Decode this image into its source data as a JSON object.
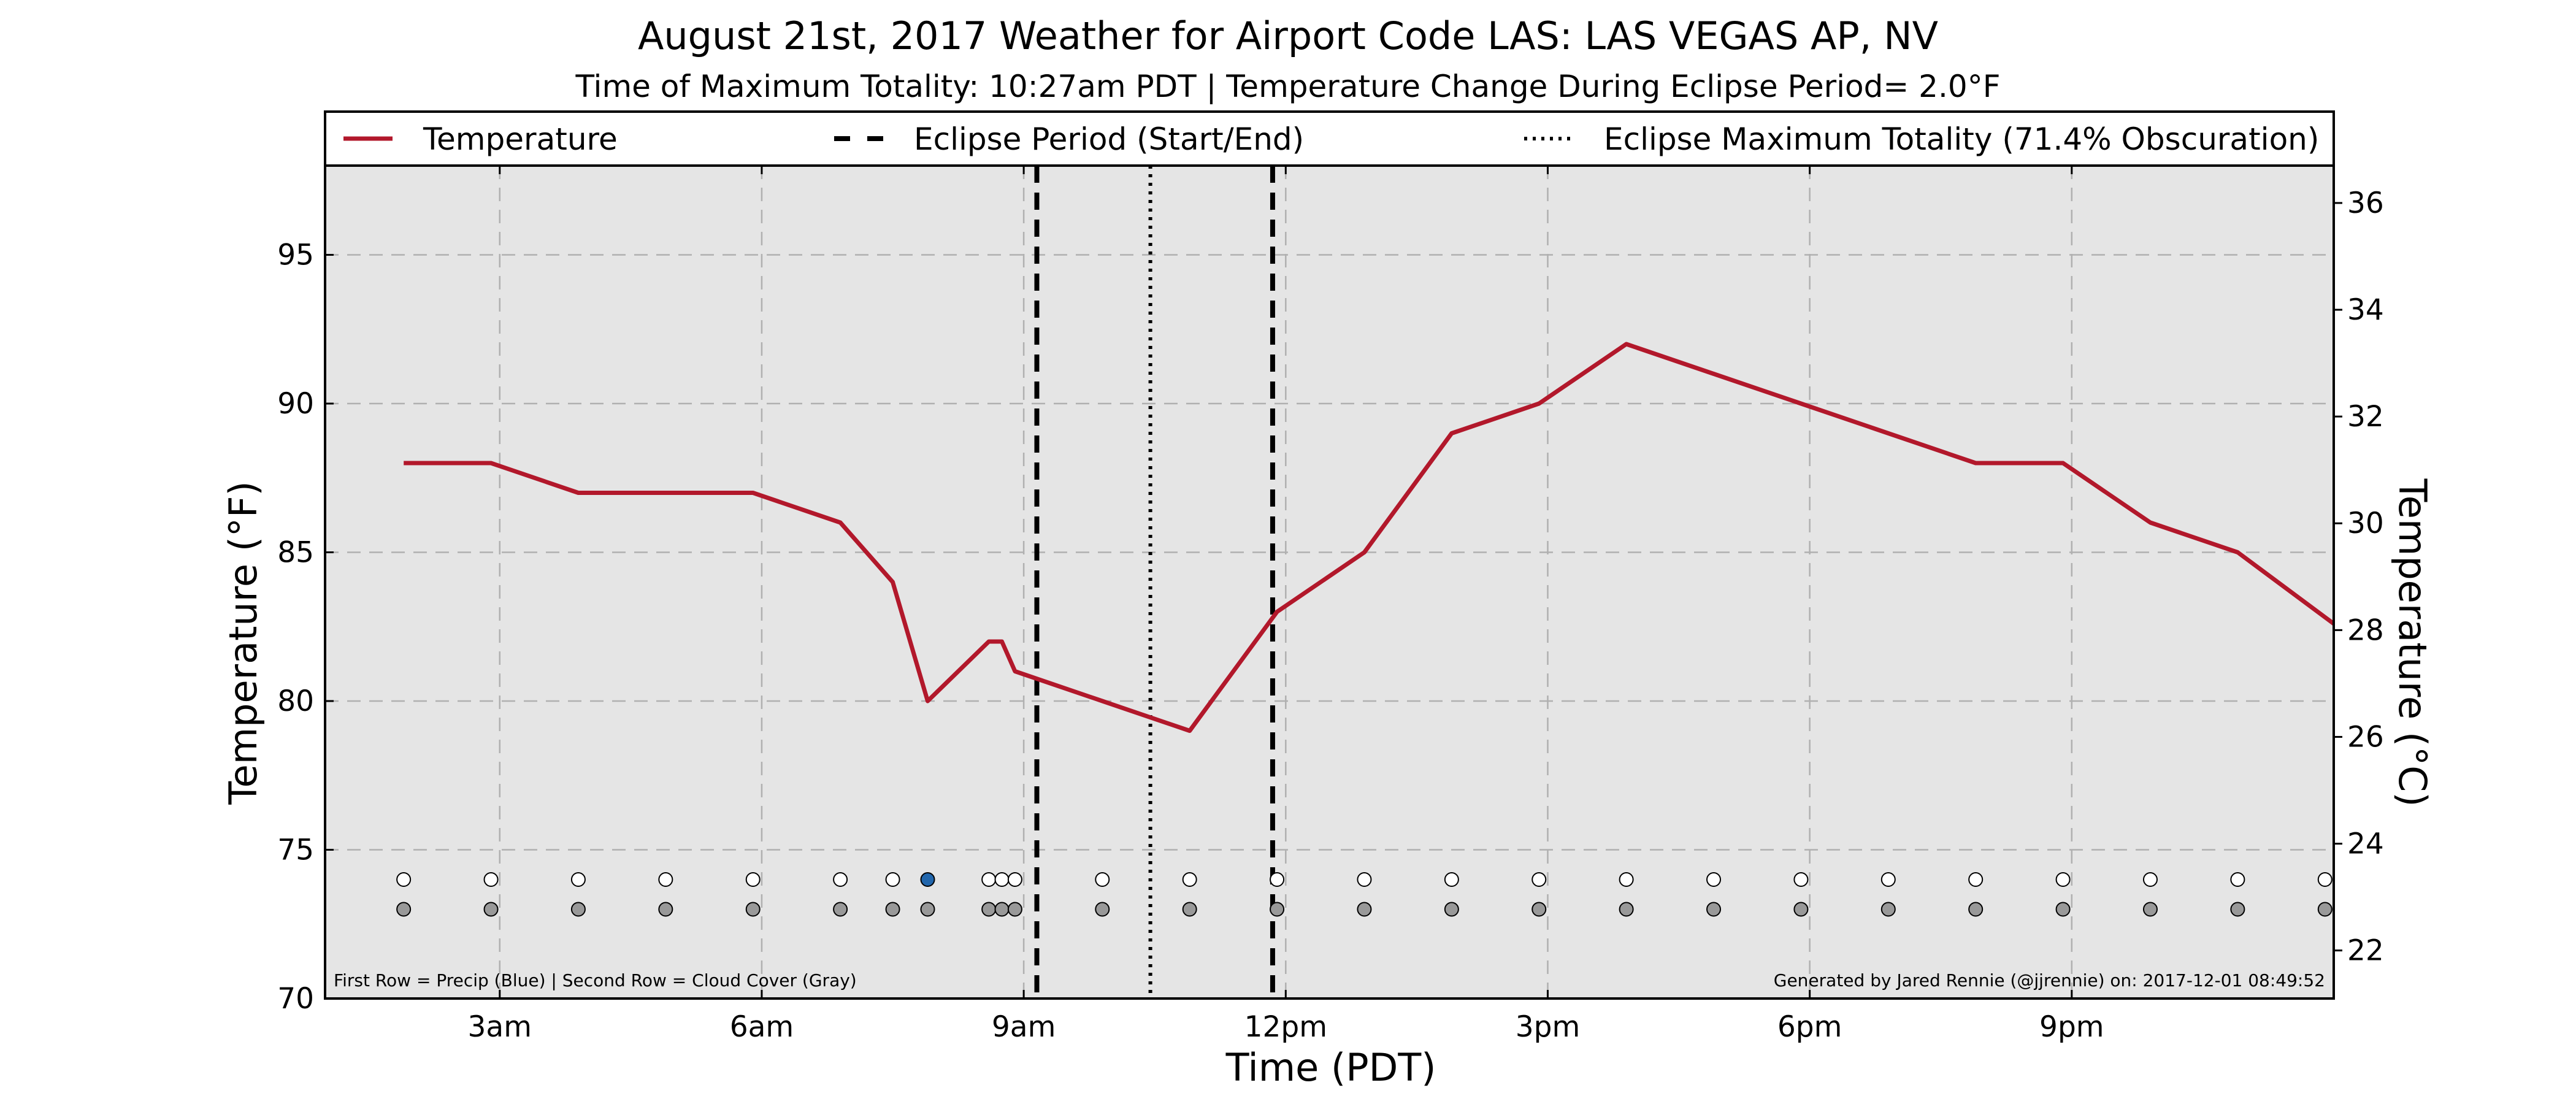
{
  "chart_data": {
    "type": "line",
    "title": "August 21st, 2017 Weather for Airport Code LAS: LAS VEGAS AP, NV",
    "subtitle": "Time of Maximum Totality: 10:27am PDT | Temperature Change During Eclipse Period= 2.0°F",
    "xlabel": "Time (PDT)",
    "ylabel": "Temperature (°F)",
    "ylabel_right": "Temperature (°C)",
    "xlim": [
      1.0,
      24.0
    ],
    "ylim": [
      70,
      98
    ],
    "ylim_right": [
      21.1,
      36.7
    ],
    "grid": true,
    "legend_placement": "top, full width",
    "x_ticks": [
      {
        "x": 3,
        "label": "3am"
      },
      {
        "x": 6,
        "label": "6am"
      },
      {
        "x": 9,
        "label": "9am"
      },
      {
        "x": 12,
        "label": "12pm"
      },
      {
        "x": 15,
        "label": "3pm"
      },
      {
        "x": 18,
        "label": "6pm"
      },
      {
        "x": 21,
        "label": "9pm"
      }
    ],
    "y_ticks": [
      70,
      75,
      80,
      85,
      90,
      95
    ],
    "y_ticks_right": [
      22,
      24,
      26,
      28,
      30,
      32,
      34,
      36
    ],
    "series": [
      {
        "name": "Temperature",
        "color": "#b2182b",
        "x": [
          1.9,
          2.9,
          3.9,
          4.9,
          5.9,
          6.9,
          7.5,
          7.9,
          8.6,
          8.75,
          8.9,
          9.9,
          10.9,
          11.9,
          12.9,
          13.9,
          14.9,
          15.9,
          16.9,
          17.9,
          18.9,
          19.9,
          20.9,
          21.9,
          22.9,
          24.0
        ],
        "y": [
          88,
          88,
          87,
          87,
          87,
          86,
          84,
          80,
          82,
          82,
          81,
          80,
          79,
          83,
          85,
          89,
          90,
          92,
          91,
          90,
          89,
          88,
          88,
          86,
          85,
          82.6
        ]
      }
    ],
    "eclipse_start": 9.15,
    "eclipse_end": 11.85,
    "eclipse_max": 10.45,
    "legend": [
      {
        "label": "Temperature",
        "style": "solid",
        "color": "#b2182b"
      },
      {
        "label": "Eclipse Period (Start/End)",
        "style": "dashed",
        "color": "#000000"
      },
      {
        "label": "Eclipse Maximum Totality (71.4% Obscuration)",
        "style": "dotted",
        "color": "#000000"
      }
    ],
    "precip_row": {
      "y": 74,
      "x": [
        1.9,
        2.9,
        3.9,
        4.9,
        5.9,
        6.9,
        7.5,
        7.9,
        8.6,
        8.75,
        8.9,
        9.9,
        10.9,
        11.9,
        12.9,
        13.9,
        14.9,
        15.9,
        16.9,
        17.9,
        18.9,
        19.9,
        20.9,
        21.9,
        22.9,
        23.9
      ],
      "colors": [
        "#ffffff",
        "#ffffff",
        "#ffffff",
        "#ffffff",
        "#ffffff",
        "#ffffff",
        "#ffffff",
        "#2166ac",
        "#ffffff",
        "#ffffff",
        "#ffffff",
        "#ffffff",
        "#ffffff",
        "#ffffff",
        "#ffffff",
        "#ffffff",
        "#ffffff",
        "#ffffff",
        "#ffffff",
        "#ffffff",
        "#ffffff",
        "#ffffff",
        "#ffffff",
        "#ffffff",
        "#ffffff",
        "#ffffff"
      ]
    },
    "cloud_row": {
      "y": 73,
      "x": [
        1.9,
        2.9,
        3.9,
        4.9,
        5.9,
        6.9,
        7.5,
        7.9,
        8.6,
        8.75,
        8.9,
        9.9,
        10.9,
        11.9,
        12.9,
        13.9,
        14.9,
        15.9,
        16.9,
        17.9,
        18.9,
        19.9,
        20.9,
        21.9,
        22.9,
        23.9
      ],
      "color": "#999999"
    },
    "note_left": "First Row = Precip (Blue) | Second Row = Cloud Cover (Gray)",
    "note_right": "Generated by Jared Rennie (@jjrennie) on: 2017-12-01 08:49:52"
  },
  "colors": {
    "plot_background": "#e5e5e5",
    "grid": "#b0b0b0",
    "temperature_line": "#b2182b",
    "precip_dot": "#2166ac",
    "cloud_dot": "#999999"
  }
}
